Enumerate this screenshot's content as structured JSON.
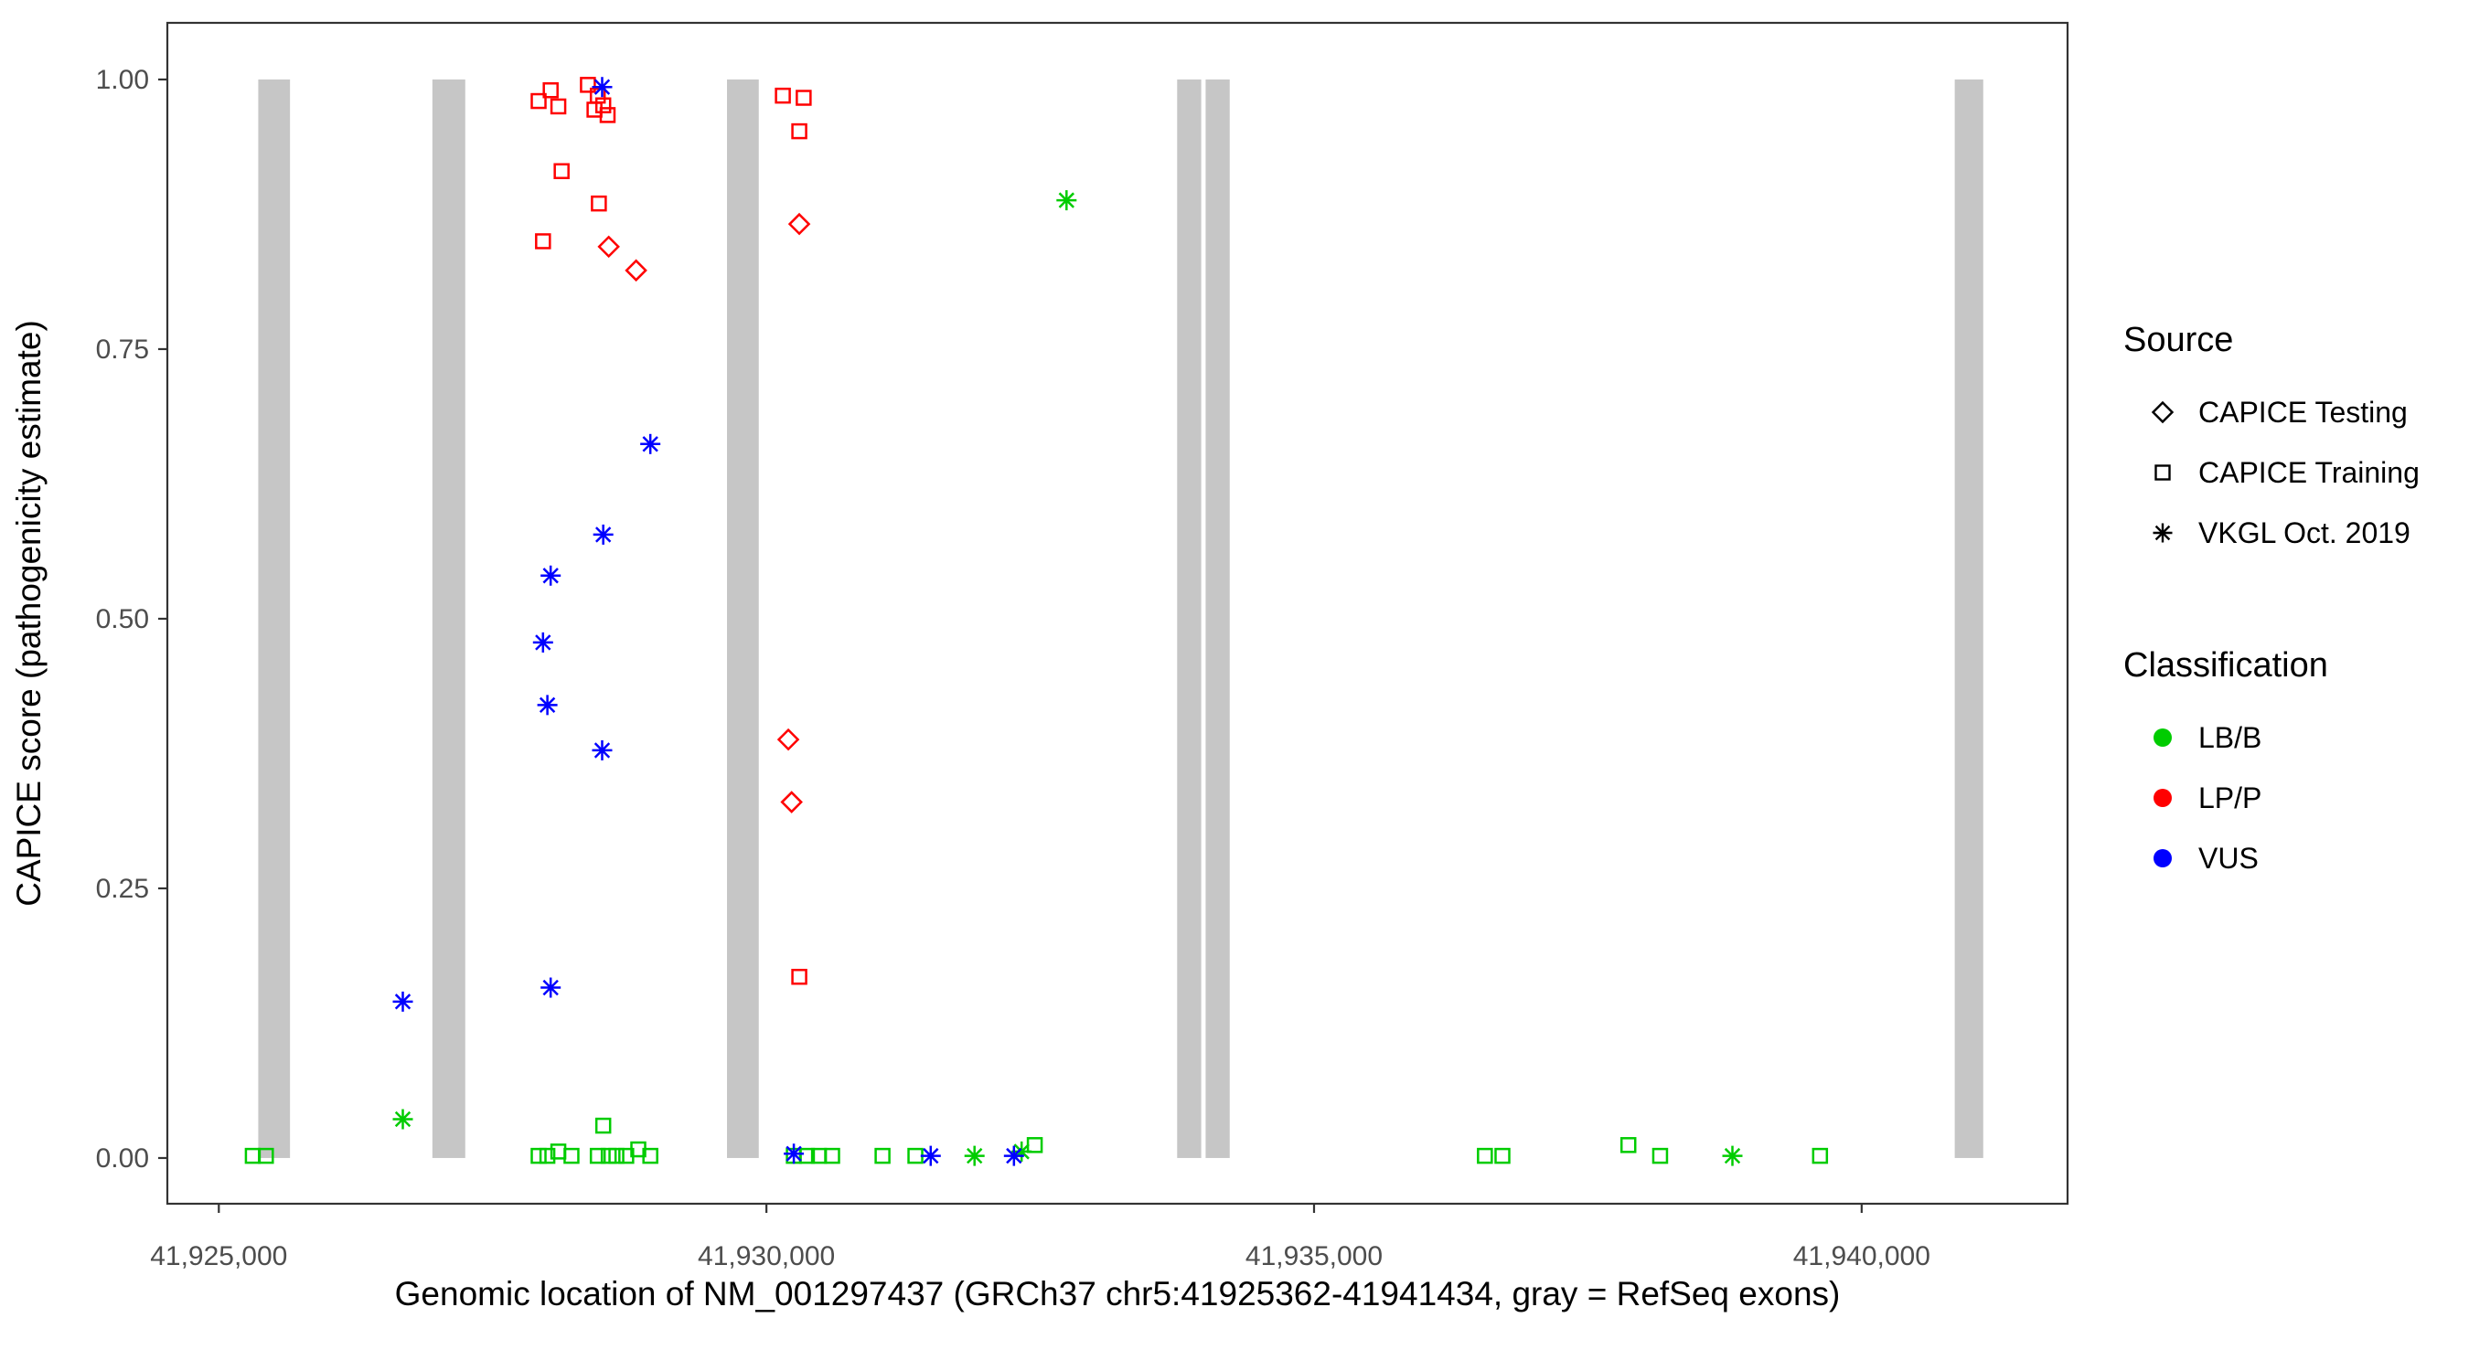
{
  "figure": {
    "background": "#FFFFFF"
  },
  "chart_data": {
    "type": "scatter",
    "title": "",
    "xlabel": "Genomic location of NM_001297437 (GRCh37 chr5:41925362-41941434, gray = RefSeq exons)",
    "ylabel": "CAPICE score (pathogenicity estimate)",
    "grid": false,
    "legend_position": "right",
    "x_domain": [
      41924530,
      41941880
    ],
    "y_domain": [
      -0.0424,
      1.0525
    ],
    "x_ticks": [
      {
        "value": 41925000,
        "label": "41,925,000"
      },
      {
        "value": 41930000,
        "label": "41,930,000"
      },
      {
        "value": 41935000,
        "label": "41,935,000"
      },
      {
        "value": 41940000,
        "label": "41,940,000"
      }
    ],
    "y_ticks": [
      {
        "value": 0.0,
        "label": "0.00"
      },
      {
        "value": 0.25,
        "label": "0.25"
      },
      {
        "value": 0.5,
        "label": "0.50"
      },
      {
        "value": 0.75,
        "label": "0.75"
      },
      {
        "value": 1.0,
        "label": "1.00"
      }
    ],
    "exon_color": "#C6C6C6",
    "exons": [
      {
        "start": 41925360,
        "end": 41925650
      },
      {
        "start": 41926950,
        "end": 41927250
      },
      {
        "start": 41929640,
        "end": 41929930
      },
      {
        "start": 41933750,
        "end": 41933970
      },
      {
        "start": 41934010,
        "end": 41934230
      },
      {
        "start": 41940850,
        "end": 41941110
      }
    ],
    "colors": {
      "LB/B": "#00CC00",
      "LP/P": "#FF0000",
      "VUS": "#0000FF"
    },
    "shapes": {
      "CAPICE Testing": "diamond",
      "CAPICE Training": "square",
      "VKGL Oct. 2019": "asterisk"
    },
    "points": [
      {
        "x": 41925310,
        "y": 0.002,
        "src": "CAPICE Training",
        "cls": "LB/B"
      },
      {
        "x": 41925430,
        "y": 0.002,
        "src": "CAPICE Training",
        "cls": "LB/B"
      },
      {
        "x": 41927920,
        "y": 0.002,
        "src": "CAPICE Training",
        "cls": "LB/B"
      },
      {
        "x": 41928000,
        "y": 0.002,
        "src": "CAPICE Training",
        "cls": "LB/B"
      },
      {
        "x": 41928100,
        "y": 0.006,
        "src": "CAPICE Training",
        "cls": "LB/B"
      },
      {
        "x": 41928220,
        "y": 0.002,
        "src": "CAPICE Training",
        "cls": "LB/B"
      },
      {
        "x": 41928460,
        "y": 0.002,
        "src": "CAPICE Training",
        "cls": "LB/B"
      },
      {
        "x": 41928510,
        "y": 0.03,
        "src": "CAPICE Training",
        "cls": "LB/B"
      },
      {
        "x": 41928560,
        "y": 0.002,
        "src": "CAPICE Training",
        "cls": "LB/B"
      },
      {
        "x": 41928630,
        "y": 0.002,
        "src": "CAPICE Training",
        "cls": "LB/B"
      },
      {
        "x": 41928720,
        "y": 0.002,
        "src": "CAPICE Training",
        "cls": "LB/B"
      },
      {
        "x": 41928830,
        "y": 0.008,
        "src": "CAPICE Training",
        "cls": "LB/B"
      },
      {
        "x": 41928940,
        "y": 0.002,
        "src": "CAPICE Training",
        "cls": "LB/B"
      },
      {
        "x": 41930250,
        "y": 0.002,
        "src": "CAPICE Training",
        "cls": "LB/B"
      },
      {
        "x": 41930370,
        "y": 0.002,
        "src": "CAPICE Training",
        "cls": "LB/B"
      },
      {
        "x": 41930480,
        "y": 0.002,
        "src": "CAPICE Training",
        "cls": "LB/B"
      },
      {
        "x": 41930600,
        "y": 0.002,
        "src": "CAPICE Training",
        "cls": "LB/B"
      },
      {
        "x": 41931060,
        "y": 0.002,
        "src": "CAPICE Training",
        "cls": "LB/B"
      },
      {
        "x": 41931360,
        "y": 0.002,
        "src": "CAPICE Training",
        "cls": "LB/B"
      },
      {
        "x": 41932450,
        "y": 0.012,
        "src": "CAPICE Training",
        "cls": "LB/B"
      },
      {
        "x": 41936560,
        "y": 0.002,
        "src": "CAPICE Training",
        "cls": "LB/B"
      },
      {
        "x": 41936720,
        "y": 0.002,
        "src": "CAPICE Training",
        "cls": "LB/B"
      },
      {
        "x": 41937870,
        "y": 0.012,
        "src": "CAPICE Training",
        "cls": "LB/B"
      },
      {
        "x": 41938160,
        "y": 0.002,
        "src": "CAPICE Training",
        "cls": "LB/B"
      },
      {
        "x": 41939620,
        "y": 0.002,
        "src": "CAPICE Training",
        "cls": "LB/B"
      },
      {
        "x": 41927920,
        "y": 0.98,
        "src": "CAPICE Training",
        "cls": "LP/P"
      },
      {
        "x": 41928030,
        "y": 0.99,
        "src": "CAPICE Training",
        "cls": "LP/P"
      },
      {
        "x": 41928100,
        "y": 0.975,
        "src": "CAPICE Training",
        "cls": "LP/P"
      },
      {
        "x": 41928370,
        "y": 0.995,
        "src": "CAPICE Training",
        "cls": "LP/P"
      },
      {
        "x": 41928430,
        "y": 0.972,
        "src": "CAPICE Training",
        "cls": "LP/P"
      },
      {
        "x": 41928460,
        "y": 0.985,
        "src": "CAPICE Training",
        "cls": "LP/P"
      },
      {
        "x": 41928510,
        "y": 0.976,
        "src": "CAPICE Training",
        "cls": "LP/P"
      },
      {
        "x": 41928550,
        "y": 0.967,
        "src": "CAPICE Training",
        "cls": "LP/P"
      },
      {
        "x": 41928130,
        "y": 0.915,
        "src": "CAPICE Training",
        "cls": "LP/P"
      },
      {
        "x": 41928470,
        "y": 0.885,
        "src": "CAPICE Training",
        "cls": "LP/P"
      },
      {
        "x": 41927960,
        "y": 0.85,
        "src": "CAPICE Training",
        "cls": "LP/P"
      },
      {
        "x": 41930150,
        "y": 0.985,
        "src": "CAPICE Training",
        "cls": "LP/P"
      },
      {
        "x": 41930340,
        "y": 0.983,
        "src": "CAPICE Training",
        "cls": "LP/P"
      },
      {
        "x": 41930300,
        "y": 0.952,
        "src": "CAPICE Training",
        "cls": "LP/P"
      },
      {
        "x": 41930300,
        "y": 0.168,
        "src": "CAPICE Training",
        "cls": "LP/P"
      },
      {
        "x": 41928560,
        "y": 0.845,
        "src": "CAPICE Testing",
        "cls": "LP/P"
      },
      {
        "x": 41928810,
        "y": 0.823,
        "src": "CAPICE Testing",
        "cls": "LP/P"
      },
      {
        "x": 41930300,
        "y": 0.866,
        "src": "CAPICE Testing",
        "cls": "LP/P"
      },
      {
        "x": 41930200,
        "y": 0.388,
        "src": "CAPICE Testing",
        "cls": "LP/P"
      },
      {
        "x": 41930230,
        "y": 0.33,
        "src": "CAPICE Testing",
        "cls": "LP/P"
      },
      {
        "x": 41926680,
        "y": 0.036,
        "src": "VKGL Oct. 2019",
        "cls": "LB/B"
      },
      {
        "x": 41931900,
        "y": 0.002,
        "src": "VKGL Oct. 2019",
        "cls": "LB/B"
      },
      {
        "x": 41932330,
        "y": 0.006,
        "src": "VKGL Oct. 2019",
        "cls": "LB/B"
      },
      {
        "x": 41932740,
        "y": 0.888,
        "src": "VKGL Oct. 2019",
        "cls": "LB/B"
      },
      {
        "x": 41938820,
        "y": 0.002,
        "src": "VKGL Oct. 2019",
        "cls": "LB/B"
      },
      {
        "x": 41928500,
        "y": 0.993,
        "src": "VKGL Oct. 2019",
        "cls": "VUS"
      },
      {
        "x": 41928940,
        "y": 0.662,
        "src": "VKGL Oct. 2019",
        "cls": "VUS"
      },
      {
        "x": 41928510,
        "y": 0.578,
        "src": "VKGL Oct. 2019",
        "cls": "VUS"
      },
      {
        "x": 41928030,
        "y": 0.54,
        "src": "VKGL Oct. 2019",
        "cls": "VUS"
      },
      {
        "x": 41927960,
        "y": 0.478,
        "src": "VKGL Oct. 2019",
        "cls": "VUS"
      },
      {
        "x": 41928000,
        "y": 0.42,
        "src": "VKGL Oct. 2019",
        "cls": "VUS"
      },
      {
        "x": 41928500,
        "y": 0.378,
        "src": "VKGL Oct. 2019",
        "cls": "VUS"
      },
      {
        "x": 41926680,
        "y": 0.145,
        "src": "VKGL Oct. 2019",
        "cls": "VUS"
      },
      {
        "x": 41928030,
        "y": 0.158,
        "src": "VKGL Oct. 2019",
        "cls": "VUS"
      },
      {
        "x": 41930250,
        "y": 0.004,
        "src": "VKGL Oct. 2019",
        "cls": "VUS"
      },
      {
        "x": 41931500,
        "y": 0.002,
        "src": "VKGL Oct. 2019",
        "cls": "VUS"
      },
      {
        "x": 41932260,
        "y": 0.002,
        "src": "VKGL Oct. 2019",
        "cls": "VUS"
      }
    ]
  },
  "legend": {
    "source": {
      "title": "Source",
      "items": [
        {
          "label": "CAPICE Testing",
          "shape": "diamond"
        },
        {
          "label": "CAPICE Training",
          "shape": "square"
        },
        {
          "label": "VKGL Oct. 2019",
          "shape": "asterisk"
        }
      ]
    },
    "classification": {
      "title": "Classification",
      "items": [
        {
          "label": "LB/B",
          "color": "#00CC00"
        },
        {
          "label": "LP/P",
          "color": "#FF0000"
        },
        {
          "label": "VUS",
          "color": "#0000FF"
        }
      ]
    }
  }
}
